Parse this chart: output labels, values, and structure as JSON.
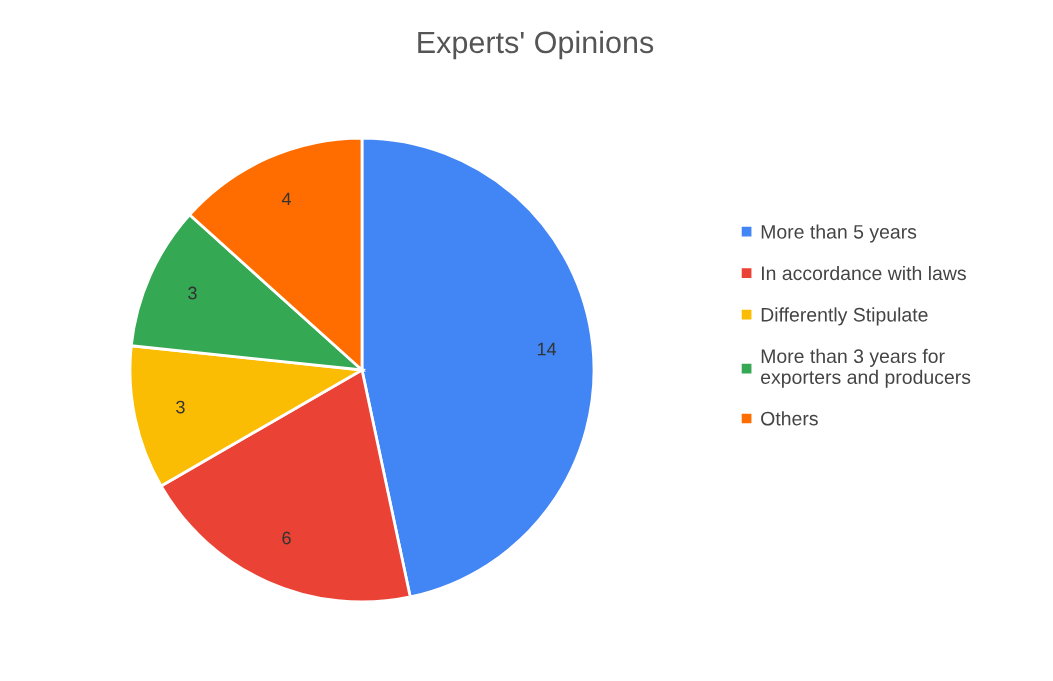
{
  "chart_data": {
    "type": "pie",
    "title": "Experts' Opinions",
    "categories": [
      "More than 5 years",
      "In accordance with laws",
      "Differently Stipulate",
      "More than 3 years for\nexporters and producers",
      "Others"
    ],
    "values": [
      14,
      6,
      3,
      3,
      4
    ],
    "colors": [
      "#4285f4",
      "#ea4335",
      "#fbbc04",
      "#34a853",
      "#ff6d01"
    ],
    "data_labels": true,
    "legend": "right"
  }
}
